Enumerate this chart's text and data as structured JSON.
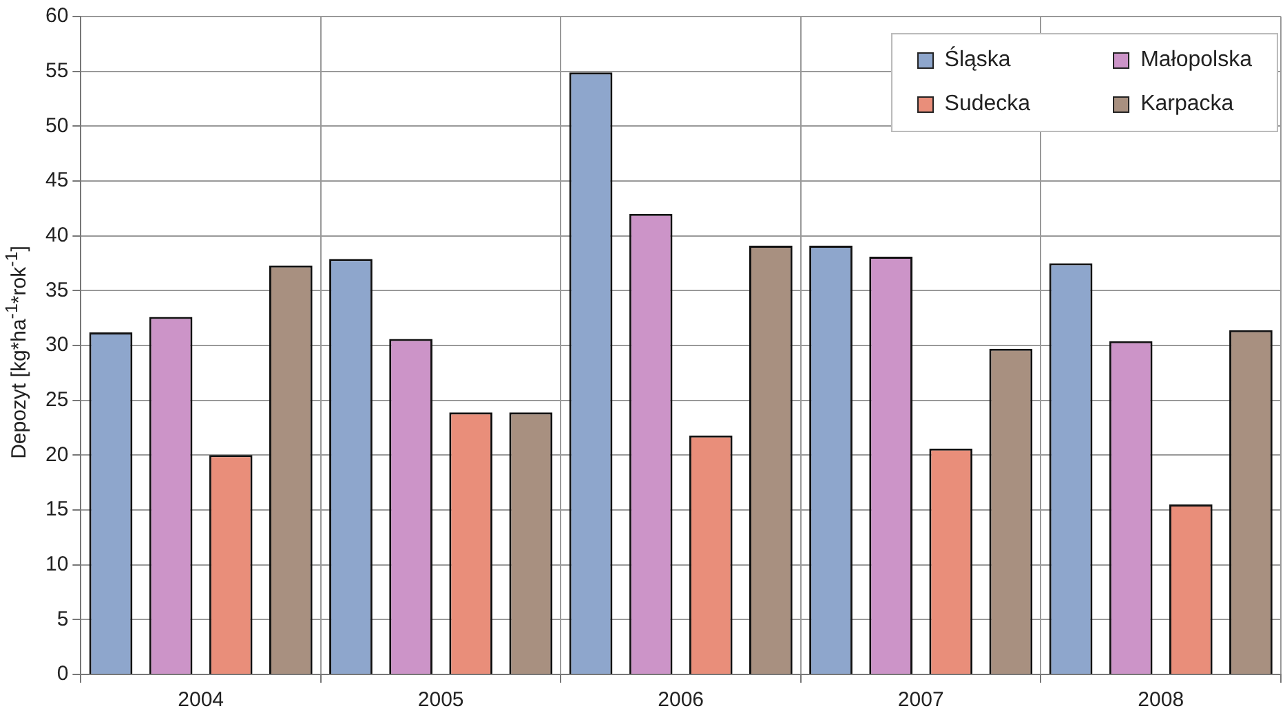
{
  "chart_data": {
    "type": "bar",
    "ylabel": "Depozyt [kg*ha$^{-1}$*rok$^{-1}$]",
    "categories": [
      "2004",
      "2005",
      "2006",
      "2007",
      "2008"
    ],
    "series": [
      {
        "name": "Śląska",
        "color": "#8ea6cc",
        "values": [
          31.2,
          37.9,
          54.9,
          39.1,
          37.5
        ]
      },
      {
        "name": "Małopolska",
        "color": "#cc94c8",
        "values": [
          32.6,
          30.6,
          42.0,
          38.1,
          30.4
        ]
      },
      {
        "name": "Sudecka",
        "color": "#e98e7a",
        "values": [
          20.0,
          23.9,
          21.8,
          20.6,
          15.5
        ]
      },
      {
        "name": "Karpacka",
        "color": "#a89080",
        "values": [
          37.3,
          23.9,
          39.1,
          29.7,
          31.4
        ]
      }
    ],
    "ylim": [
      0,
      60
    ],
    "yticks": [
      0,
      5,
      10,
      15,
      20,
      25,
      30,
      35,
      40,
      45,
      50,
      55,
      60
    ],
    "grid": true,
    "legend": "top right"
  }
}
